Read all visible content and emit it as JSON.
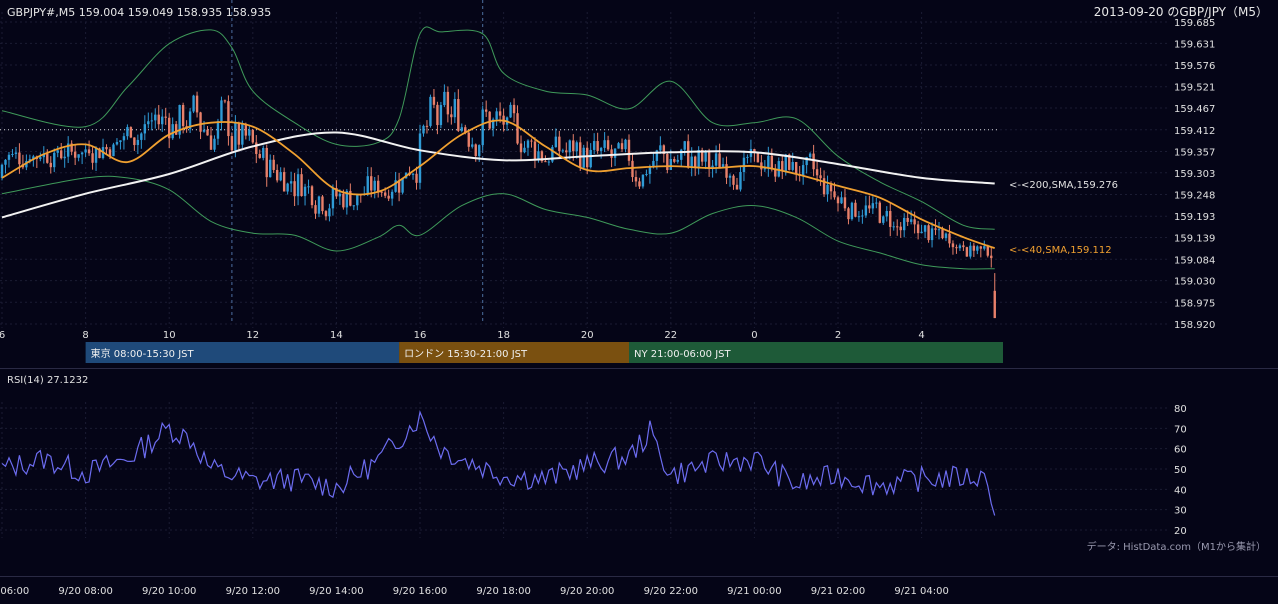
{
  "header": {
    "symbol_info": "GBPJPY#,M5 159.004 159.049 158.935 158.935",
    "chart_title": "2013-09-20 のGBP/JPY（M5）"
  },
  "indicator": {
    "label": "RSI(14) 27.1232"
  },
  "source_note": "データ: HistData.com（M1から集計）",
  "annotations": {
    "sma200_label": "<-<200,SMA,159.276",
    "sma40_label": "<-<40,SMA,159.112"
  },
  "sessions": [
    {
      "label": "東京 08:00-15:30 JST",
      "start": 8,
      "end": 15.5,
      "color": "#1f4a7a"
    },
    {
      "label": "ロンドン 15:30-21:00 JST",
      "start": 15.5,
      "end": 21,
      "color": "#7a5010"
    },
    {
      "label": "NY 21:00-06:00 JST",
      "start": 21,
      "end": 30,
      "color": "#1e5a38"
    }
  ],
  "colors": {
    "background": "#050517",
    "bull_candle": "#2f9bd6",
    "bear_candle": "#e8806a",
    "sma40": "#f0a030",
    "sma200": "#f2f2f2",
    "bollinger": "#3f9a5a",
    "rsi_line": "#6c6cf0"
  },
  "chart_data": [
    {
      "type": "candlestick",
      "title": "2013-09-20 のGBP/JPY（M5）",
      "timeframe": "M5",
      "x_range_hours_jst": [
        6,
        29.75
      ],
      "x_tick_labels": [
        "6",
        "8",
        "10",
        "12",
        "14",
        "16",
        "18",
        "20",
        "22",
        "0",
        "2",
        "4"
      ],
      "ylim": [
        158.92,
        159.685
      ],
      "y_ticks": [
        "159.685",
        "159.631",
        "159.576",
        "159.521",
        "159.467",
        "159.412",
        "159.357",
        "159.303",
        "159.248",
        "159.193",
        "159.139",
        "159.084",
        "159.030",
        "158.975",
        "158.920"
      ],
      "reference_line": 159.412,
      "vertical_markers_hours": [
        11.5,
        17.5
      ],
      "last_candle": {
        "open": 159.004,
        "high": 159.049,
        "low": 158.935,
        "close": 158.935
      },
      "series": [
        {
          "name": "<-<200,SMA,159.276",
          "style": "line",
          "points": [
            [
              6,
              159.19
            ],
            [
              8,
              159.25
            ],
            [
              10,
              159.3
            ],
            [
              12,
              159.37
            ],
            [
              14,
              159.405
            ],
            [
              16,
              159.36
            ],
            [
              18,
              159.335
            ],
            [
              20,
              159.345
            ],
            [
              22,
              159.355
            ],
            [
              0,
              159.355
            ],
            [
              2,
              159.325
            ],
            [
              4,
              159.29
            ],
            [
              5.75,
              159.276
            ]
          ]
        },
        {
          "name": "<-<40,SMA,159.112",
          "style": "line",
          "points": [
            [
              6,
              159.29
            ],
            [
              7,
              159.35
            ],
            [
              8,
              159.375
            ],
            [
              9,
              159.33
            ],
            [
              10,
              159.4
            ],
            [
              11,
              159.43
            ],
            [
              12,
              159.42
            ],
            [
              13,
              159.35
            ],
            [
              14,
              159.26
            ],
            [
              15,
              159.255
            ],
            [
              16,
              159.32
            ],
            [
              17,
              159.4
            ],
            [
              18,
              159.435
            ],
            [
              19,
              159.37
            ],
            [
              20,
              159.31
            ],
            [
              21,
              159.315
            ],
            [
              22,
              159.32
            ],
            [
              23,
              159.315
            ],
            [
              0,
              159.32
            ],
            [
              1,
              159.3
            ],
            [
              2,
              159.27
            ],
            [
              3,
              159.24
            ],
            [
              4,
              159.185
            ],
            [
              5,
              159.14
            ],
            [
              5.75,
              159.112
            ]
          ]
        },
        {
          "name": "bollinger_upper",
          "style": "band",
          "points": [
            [
              6,
              159.46
            ],
            [
              8,
              159.42
            ],
            [
              9,
              159.52
            ],
            [
              10,
              159.63
            ],
            [
              11,
              159.665
            ],
            [
              11.5,
              159.62
            ],
            [
              12,
              159.51
            ],
            [
              13,
              159.43
            ],
            [
              14,
              159.375
            ],
            [
              15,
              159.38
            ],
            [
              15.5,
              159.44
            ],
            [
              16,
              159.655
            ],
            [
              16.5,
              159.66
            ],
            [
              17.5,
              159.655
            ],
            [
              18,
              159.555
            ],
            [
              19,
              159.51
            ],
            [
              20,
              159.5
            ],
            [
              21,
              159.465
            ],
            [
              22,
              159.535
            ],
            [
              23,
              159.43
            ],
            [
              0,
              159.43
            ],
            [
              1,
              159.44
            ],
            [
              2,
              159.345
            ],
            [
              3,
              159.28
            ],
            [
              4,
              159.23
            ],
            [
              5,
              159.17
            ],
            [
              5.75,
              159.16
            ]
          ]
        },
        {
          "name": "bollinger_lower",
          "style": "band",
          "points": [
            [
              6,
              159.25
            ],
            [
              8,
              159.29
            ],
            [
              9,
              159.29
            ],
            [
              10,
              159.26
            ],
            [
              11,
              159.18
            ],
            [
              12,
              159.15
            ],
            [
              13,
              159.145
            ],
            [
              14,
              159.105
            ],
            [
              15,
              159.14
            ],
            [
              15.5,
              159.17
            ],
            [
              16,
              159.145
            ],
            [
              17,
              159.22
            ],
            [
              18,
              159.25
            ],
            [
              19,
              159.21
            ],
            [
              20,
              159.19
            ],
            [
              21,
              159.16
            ],
            [
              22,
              159.15
            ],
            [
              23,
              159.2
            ],
            [
              0,
              159.22
            ],
            [
              1,
              159.19
            ],
            [
              2,
              159.13
            ],
            [
              3,
              159.1
            ],
            [
              4,
              159.07
            ],
            [
              5,
              159.06
            ],
            [
              5.75,
              159.06
            ]
          ]
        }
      ]
    },
    {
      "type": "line",
      "title": "RSI(14) 27.1232",
      "ylim": [
        20,
        80
      ],
      "y_ticks": [
        "80",
        "70",
        "60",
        "50",
        "40",
        "30",
        "20"
      ],
      "x_tick_labels": [
        "9/20 06:00",
        "9/20 08:00",
        "9/20 10:00",
        "9/20 12:00",
        "9/20 14:00",
        "9/20 16:00",
        "9/20 18:00",
        "9/20 20:00",
        "9/20 22:00",
        "9/21 00:00",
        "9/21 02:00",
        "9/21 04:00"
      ],
      "series": [
        {
          "name": "RSI(14) 27.1232",
          "points": [
            [
              6,
              50
            ],
            [
              7,
              55
            ],
            [
              8,
              48
            ],
            [
              9,
              55
            ],
            [
              10,
              70
            ],
            [
              10.5,
              65
            ],
            [
              11,
              50
            ],
            [
              12,
              44
            ],
            [
              13,
              45
            ],
            [
              14,
              41
            ],
            [
              15,
              54
            ],
            [
              16,
              76
            ],
            [
              16.5,
              60
            ],
            [
              17,
              55
            ],
            [
              18,
              47
            ],
            [
              19,
              45
            ],
            [
              20,
              52
            ],
            [
              21,
              56
            ],
            [
              21.5,
              68
            ],
            [
              22,
              47
            ],
            [
              23,
              53
            ],
            [
              0,
              55
            ],
            [
              1,
              42
            ],
            [
              2,
              47
            ],
            [
              3,
              42
            ],
            [
              4,
              45
            ],
            [
              5,
              46
            ],
            [
              5.6,
              46
            ],
            [
              5.75,
              27.1
            ]
          ]
        }
      ]
    }
  ]
}
